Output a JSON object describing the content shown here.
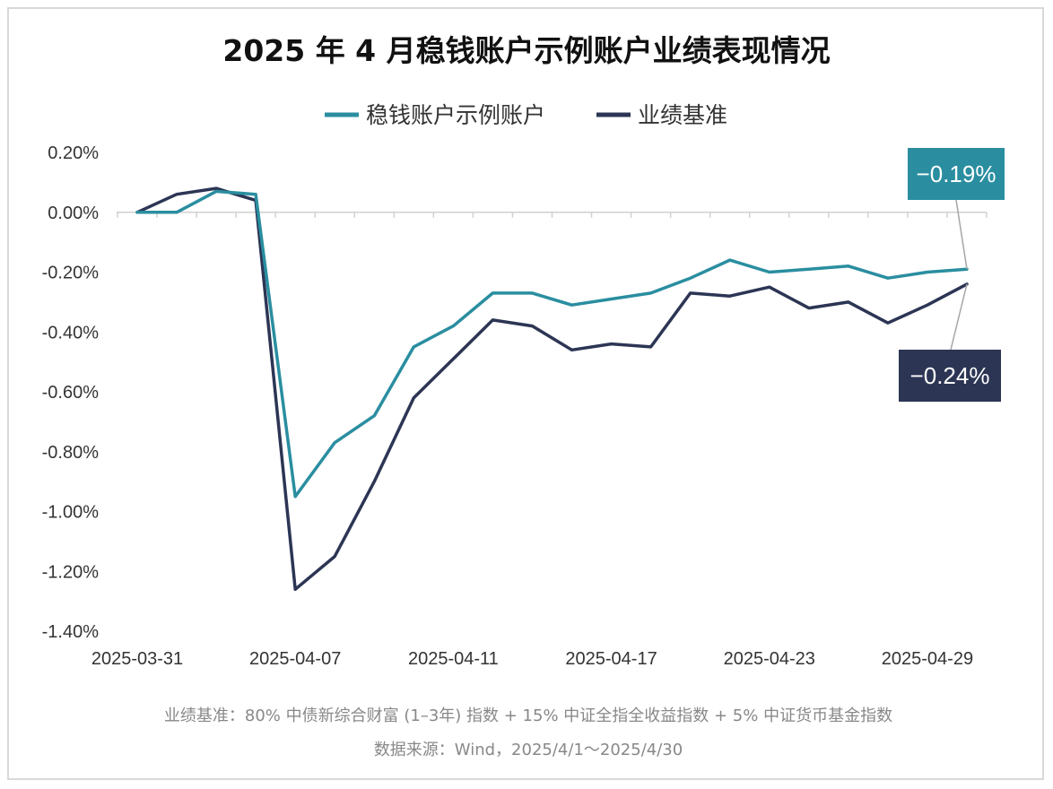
{
  "chart_data": {
    "type": "line",
    "title": "2025 年 4 月稳钱账户示例账户业绩表现情况",
    "legend_placement": "top-center",
    "grid": false,
    "ylim": [
      -1.4,
      0.2
    ],
    "y_ticks": [
      "0.20%",
      "0.00%",
      "-0.20%",
      "-0.40%",
      "-0.60%",
      "-0.80%",
      "-1.00%",
      "-1.20%",
      "-1.40%"
    ],
    "y_tick_values": [
      0.2,
      0.0,
      -0.2,
      -0.4,
      -0.6,
      -0.8,
      -1.0,
      -1.2,
      -1.4
    ],
    "x_ticks": [
      "2025-03-31",
      "2025-04-07",
      "2025-04-11",
      "2025-04-17",
      "2025-04-23",
      "2025-04-29"
    ],
    "x_tick_index": [
      0,
      4,
      8,
      12,
      16,
      20
    ],
    "x": [
      "2025-03-31",
      "2025-04-01",
      "2025-04-02",
      "2025-04-03",
      "2025-04-07",
      "2025-04-08",
      "2025-04-09",
      "2025-04-10",
      "2025-04-11",
      "2025-04-14",
      "2025-04-15",
      "2025-04-16",
      "2025-04-17",
      "2025-04-18",
      "2025-04-21",
      "2025-04-22",
      "2025-04-23",
      "2025-04-24",
      "2025-04-25",
      "2025-04-28",
      "2025-04-29",
      "2025-04-30"
    ],
    "series": [
      {
        "name": "稳钱账户示例账户",
        "color": "#2a8ea0",
        "values": [
          0.0,
          0.0,
          0.07,
          0.06,
          -0.95,
          -0.77,
          -0.68,
          -0.45,
          -0.38,
          -0.27,
          -0.27,
          -0.31,
          -0.29,
          -0.27,
          -0.22,
          -0.16,
          -0.2,
          -0.19,
          -0.18,
          -0.22,
          -0.2,
          -0.19
        ],
        "end_label": "−0.19%"
      },
      {
        "name": "业绩基准",
        "color": "#2c3554",
        "values": [
          0.0,
          0.06,
          0.08,
          0.04,
          -1.26,
          -1.15,
          -0.9,
          -0.62,
          -0.49,
          -0.36,
          -0.38,
          -0.46,
          -0.44,
          -0.45,
          -0.27,
          -0.28,
          -0.25,
          -0.32,
          -0.3,
          -0.37,
          -0.31,
          -0.24
        ],
        "end_label": "−0.24%"
      }
    ],
    "notes": [
      "业绩基准：80% 中债新综合财富 (1–3年) 指数 + 15% 中证全指全收益指数 + 5% 中证货币基金指数",
      "数据来源：Wind，2025/4/1～2025/4/30"
    ]
  }
}
